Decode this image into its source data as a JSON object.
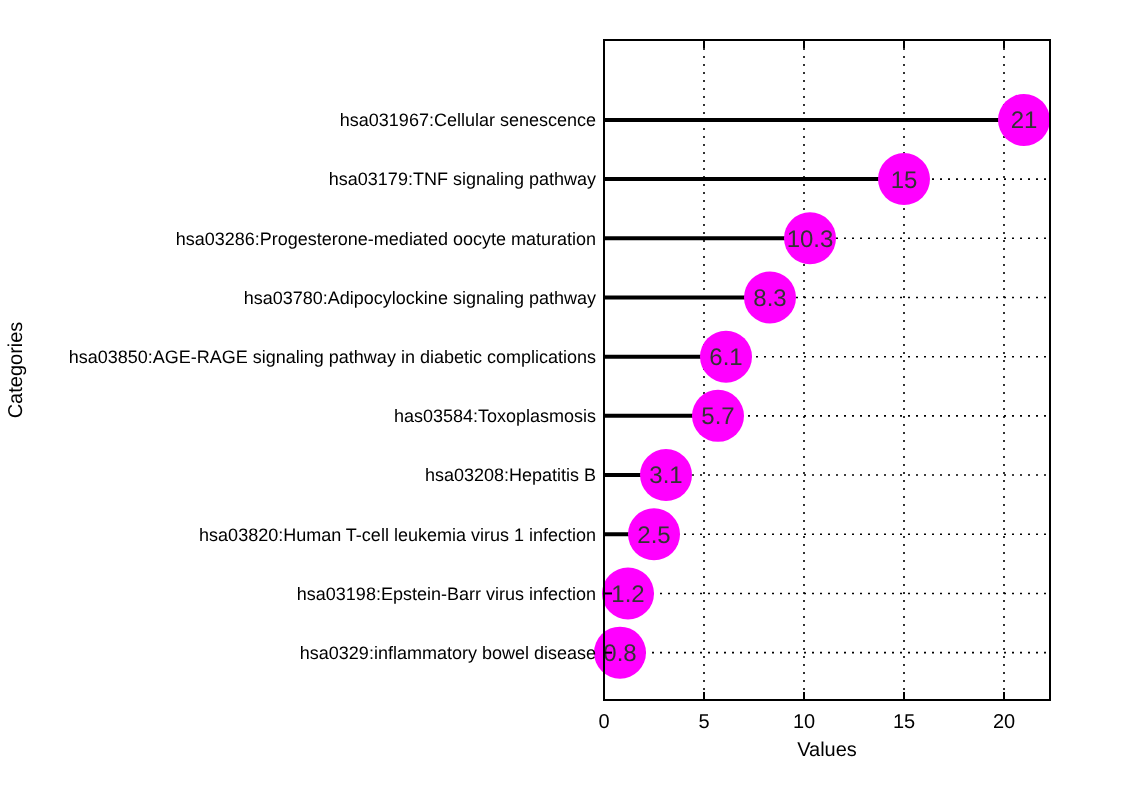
{
  "chart_data": {
    "type": "lollipop",
    "xlabel": "Values",
    "ylabel": "Categories",
    "orientation": "horizontal",
    "categories": [
      "hsa031967:Cellular senescence",
      "hsa03179:TNF signaling pathway",
      "hsa03286:Progesterone-mediated oocyte maturation",
      "hsa03780:Adipocylockine signaling pathway",
      "hsa03850:AGE-RAGE signaling pathway in diabetic complications",
      "has03584:Toxoplasmosis",
      "hsa03208:Hepatitis B",
      "hsa03820:Human T-cell leukemia virus 1 infection",
      "hsa03198:Epstein-Barr virus infection",
      "hsa0329:inflammatory bowel disease"
    ],
    "values": [
      21,
      15,
      10.3,
      8.3,
      6.1,
      5.7,
      3.1,
      2.5,
      1.2,
      0.8
    ],
    "color": "#ff00ff",
    "data_labels": true,
    "xlim": [
      0,
      22.3
    ],
    "xticks": [
      0,
      5,
      10,
      15,
      20
    ],
    "grid": true,
    "marker": "circle"
  }
}
